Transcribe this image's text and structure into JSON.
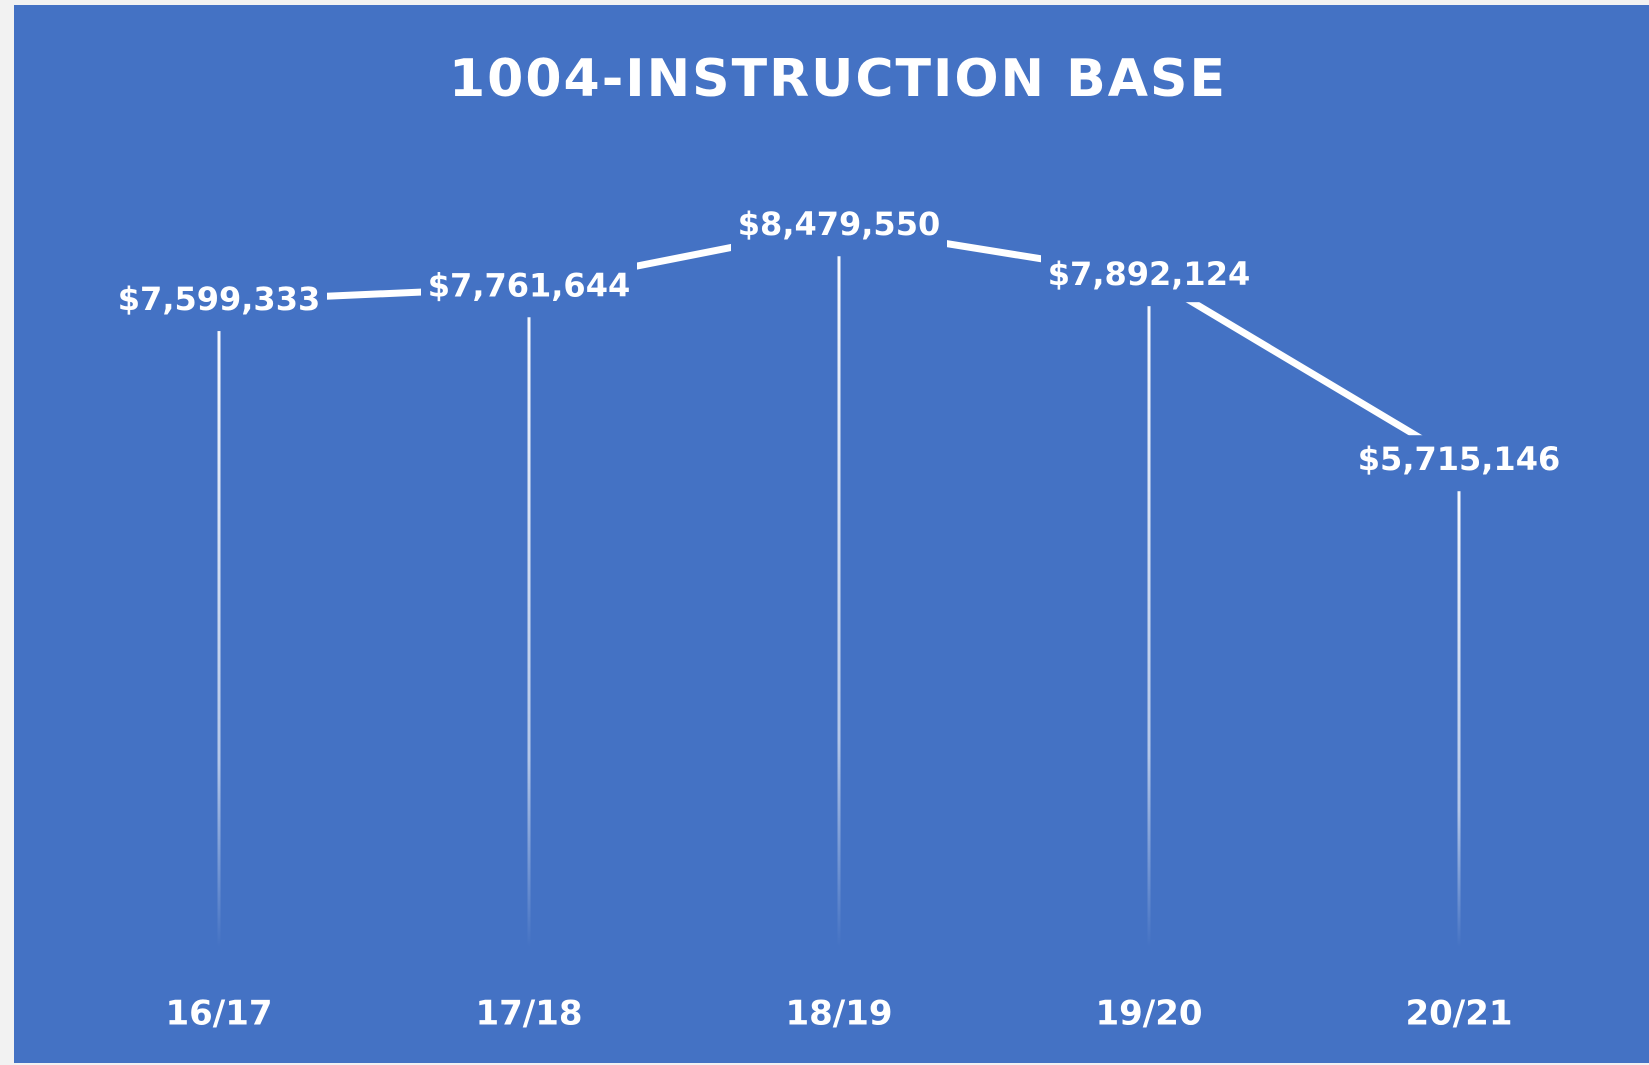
{
  "chart_data": {
    "type": "line",
    "title": "1004-INSTRUCTION BASE",
    "categories": [
      "16/17",
      "17/18",
      "18/19",
      "19/20",
      "20/21"
    ],
    "values": [
      7599333,
      7761644,
      8479550,
      7892124,
      5715146
    ],
    "value_labels": [
      "$7,599,333",
      "$7,761,644",
      "$8,479,550",
      "$7,892,124",
      "$5,715,146"
    ],
    "color": "#ffffff",
    "ylim": [
      0,
      9000000
    ]
  }
}
